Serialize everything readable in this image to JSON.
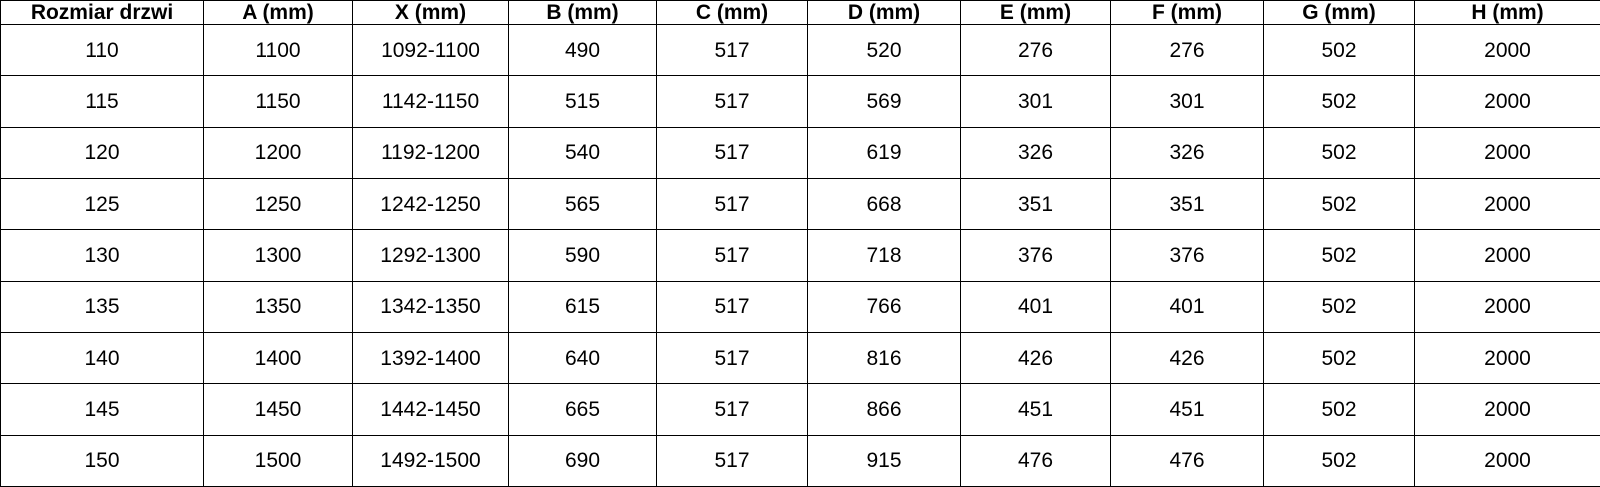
{
  "colors": {
    "border": "#000000",
    "background": "#ffffff",
    "text": "#000000"
  },
  "chart_data": {
    "type": "table",
    "title": "",
    "columns": [
      "Rozmiar drzwi",
      "A (mm)",
      "X (mm)",
      "B (mm)",
      "C (mm)",
      "D (mm)",
      "E (mm)",
      "F (mm)",
      "G (mm)",
      "H (mm)"
    ],
    "rows": [
      [
        "110",
        "1100",
        "1092-1100",
        "490",
        "517",
        "520",
        "276",
        "276",
        "502",
        "2000"
      ],
      [
        "115",
        "1150",
        "1142-1150",
        "515",
        "517",
        "569",
        "301",
        "301",
        "502",
        "2000"
      ],
      [
        "120",
        "1200",
        "1192-1200",
        "540",
        "517",
        "619",
        "326",
        "326",
        "502",
        "2000"
      ],
      [
        "125",
        "1250",
        "1242-1250",
        "565",
        "517",
        "668",
        "351",
        "351",
        "502",
        "2000"
      ],
      [
        "130",
        "1300",
        "1292-1300",
        "590",
        "517",
        "718",
        "376",
        "376",
        "502",
        "2000"
      ],
      [
        "135",
        "1350",
        "1342-1350",
        "615",
        "517",
        "766",
        "401",
        "401",
        "502",
        "2000"
      ],
      [
        "140",
        "1400",
        "1392-1400",
        "640",
        "517",
        "816",
        "426",
        "426",
        "502",
        "2000"
      ],
      [
        "145",
        "1450",
        "1442-1450",
        "665",
        "517",
        "866",
        "451",
        "451",
        "502",
        "2000"
      ],
      [
        "150",
        "1500",
        "1492-1500",
        "690",
        "517",
        "915",
        "476",
        "476",
        "502",
        "2000"
      ]
    ]
  }
}
